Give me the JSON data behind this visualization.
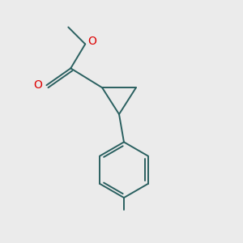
{
  "background_color": "#ebebeb",
  "bond_color": "#2a6060",
  "oxygen_color": "#dd0000",
  "line_width": 1.4,
  "fig_width": 3.0,
  "fig_height": 3.0,
  "dpi": 100,
  "font_size": 10
}
